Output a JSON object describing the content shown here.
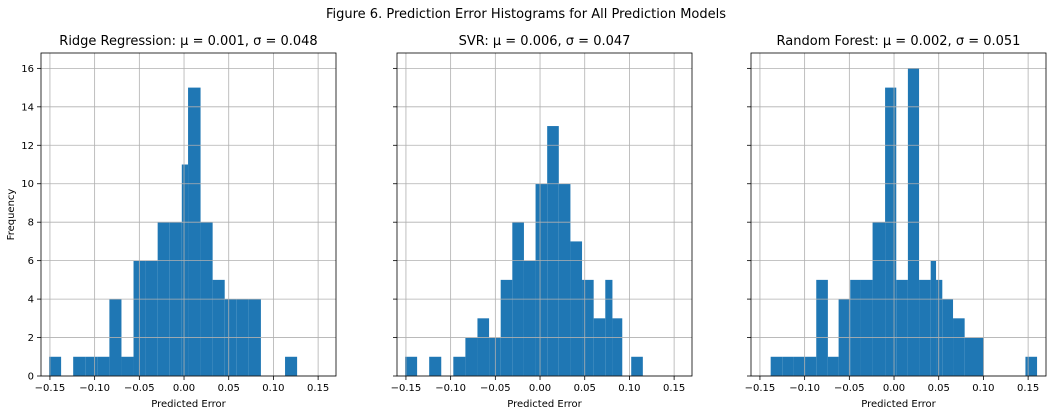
{
  "suptitle": "Figure 6. Prediction Error Histograms for All Prediction Models",
  "chart_data": [
    {
      "type": "bar",
      "title": "Ridge Regression: μ = 0.001, σ = 0.048",
      "xlabel": "Predicted Error",
      "ylabel": "Frequency",
      "xlim": [
        -0.16,
        0.17
      ],
      "ylim": [
        0,
        16.8
      ],
      "xticks": [
        -0.15,
        -0.1,
        -0.05,
        0.0,
        0.05,
        0.1,
        0.15
      ],
      "xtick_labels": [
        "−0.15",
        "−0.10",
        "−0.05",
        "0.00",
        "0.05",
        "0.10",
        "0.15"
      ],
      "yticks": [
        0,
        2,
        4,
        6,
        8,
        10,
        12,
        14,
        16
      ],
      "ytick_labels": [
        "0",
        "2",
        "4",
        "6",
        "8",
        "10",
        "12",
        "14",
        "16"
      ],
      "grid": true,
      "bins": [
        {
          "x0": -0.151,
          "x1": -0.1375,
          "y": 1
        },
        {
          "x0": -0.1375,
          "x1": -0.124,
          "y": 0
        },
        {
          "x0": -0.124,
          "x1": -0.1105,
          "y": 1
        },
        {
          "x0": -0.1105,
          "x1": -0.097,
          "y": 1
        },
        {
          "x0": -0.097,
          "x1": -0.0835,
          "y": 1
        },
        {
          "x0": -0.0835,
          "x1": -0.07,
          "y": 4
        },
        {
          "x0": -0.07,
          "x1": -0.0565,
          "y": 1
        },
        {
          "x0": -0.0565,
          "x1": -0.043,
          "y": 6
        },
        {
          "x0": -0.043,
          "x1": -0.0295,
          "y": 6
        },
        {
          "x0": -0.0295,
          "x1": -0.016,
          "y": 8
        },
        {
          "x0": -0.016,
          "x1": -0.0025,
          "y": 8
        },
        {
          "x0": -0.0025,
          "x1": 0.0045,
          "y": 11
        },
        {
          "x0": 0.0045,
          "x1": 0.0185,
          "y": 15
        },
        {
          "x0": 0.0185,
          "x1": 0.032,
          "y": 8
        },
        {
          "x0": 0.032,
          "x1": 0.0455,
          "y": 5
        },
        {
          "x0": 0.0455,
          "x1": 0.059,
          "y": 4
        },
        {
          "x0": 0.059,
          "x1": 0.0725,
          "y": 4
        },
        {
          "x0": 0.0725,
          "x1": 0.086,
          "y": 4
        },
        {
          "x0": 0.086,
          "x1": 0.113,
          "y": 0
        },
        {
          "x0": 0.113,
          "x1": 0.1265,
          "y": 1
        }
      ]
    },
    {
      "type": "bar",
      "title": "SVR: μ = 0.006, σ = 0.047",
      "xlabel": "Predicted Error",
      "ylabel": "",
      "xlim": [
        -0.16,
        0.17
      ],
      "ylim": [
        0,
        16.8
      ],
      "xticks": [
        -0.15,
        -0.1,
        -0.05,
        0.0,
        0.05,
        0.1,
        0.15
      ],
      "xtick_labels": [
        "−0.15",
        "−0.10",
        "−0.05",
        "0.00",
        "0.05",
        "0.10",
        "0.15"
      ],
      "yticks": [
        0,
        2,
        4,
        6,
        8,
        10,
        12,
        14,
        16
      ],
      "ytick_labels": [],
      "grid": true,
      "bins": [
        {
          "x0": -0.151,
          "x1": -0.1375,
          "y": 1
        },
        {
          "x0": -0.1375,
          "x1": -0.124,
          "y": 0
        },
        {
          "x0": -0.124,
          "x1": -0.1105,
          "y": 1
        },
        {
          "x0": -0.1105,
          "x1": -0.097,
          "y": 0
        },
        {
          "x0": -0.097,
          "x1": -0.0835,
          "y": 1
        },
        {
          "x0": -0.0835,
          "x1": -0.07,
          "y": 2
        },
        {
          "x0": -0.07,
          "x1": -0.057,
          "y": 3
        },
        {
          "x0": -0.057,
          "x1": -0.044,
          "y": 2
        },
        {
          "x0": -0.044,
          "x1": -0.031,
          "y": 5
        },
        {
          "x0": -0.031,
          "x1": -0.018,
          "y": 8
        },
        {
          "x0": -0.018,
          "x1": -0.005,
          "y": 6
        },
        {
          "x0": -0.005,
          "x1": 0.008,
          "y": 10
        },
        {
          "x0": 0.008,
          "x1": 0.021,
          "y": 13
        },
        {
          "x0": 0.021,
          "x1": 0.034,
          "y": 10
        },
        {
          "x0": 0.034,
          "x1": 0.047,
          "y": 7
        },
        {
          "x0": 0.047,
          "x1": 0.06,
          "y": 5
        },
        {
          "x0": 0.06,
          "x1": 0.073,
          "y": 3
        },
        {
          "x0": 0.073,
          "x1": 0.081,
          "y": 5
        },
        {
          "x0": 0.081,
          "x1": 0.092,
          "y": 3
        },
        {
          "x0": 0.092,
          "x1": 0.102,
          "y": 0
        },
        {
          "x0": 0.102,
          "x1": 0.115,
          "y": 1
        }
      ]
    },
    {
      "type": "bar",
      "title": "Random Forest: μ = 0.002, σ = 0.051",
      "xlabel": "Predicted Error",
      "ylabel": "",
      "xlim": [
        -0.16,
        0.17
      ],
      "ylim": [
        0,
        16.8
      ],
      "xticks": [
        -0.15,
        -0.1,
        -0.05,
        0.0,
        0.05,
        0.1,
        0.15
      ],
      "xtick_labels": [
        "−0.15",
        "−0.10",
        "−0.05",
        "0.00",
        "0.05",
        "0.10",
        "0.15"
      ],
      "yticks": [
        0,
        2,
        4,
        6,
        8,
        10,
        12,
        14,
        16
      ],
      "ytick_labels": [],
      "grid": true,
      "bins": [
        {
          "x0": -0.138,
          "x1": -0.125,
          "y": 1
        },
        {
          "x0": -0.125,
          "x1": -0.112,
          "y": 1
        },
        {
          "x0": -0.112,
          "x1": -0.099,
          "y": 1
        },
        {
          "x0": -0.099,
          "x1": -0.087,
          "y": 1
        },
        {
          "x0": -0.087,
          "x1": -0.074,
          "y": 5
        },
        {
          "x0": -0.074,
          "x1": -0.062,
          "y": 1
        },
        {
          "x0": -0.062,
          "x1": -0.049,
          "y": 4
        },
        {
          "x0": -0.049,
          "x1": -0.037,
          "y": 5
        },
        {
          "x0": -0.037,
          "x1": -0.024,
          "y": 5
        },
        {
          "x0": -0.024,
          "x1": -0.01,
          "y": 8
        },
        {
          "x0": -0.01,
          "x1": 0.0025,
          "y": 15
        },
        {
          "x0": 0.0025,
          "x1": 0.0155,
          "y": 5
        },
        {
          "x0": 0.0155,
          "x1": 0.028,
          "y": 16
        },
        {
          "x0": 0.028,
          "x1": 0.041,
          "y": 5
        },
        {
          "x0": 0.041,
          "x1": 0.047,
          "y": 6
        },
        {
          "x0": 0.047,
          "x1": 0.054,
          "y": 5
        },
        {
          "x0": 0.054,
          "x1": 0.066,
          "y": 4
        },
        {
          "x0": 0.066,
          "x1": 0.079,
          "y": 3
        },
        {
          "x0": 0.079,
          "x1": 0.1005,
          "y": 2
        },
        {
          "x0": 0.1005,
          "x1": 0.147,
          "y": 0
        },
        {
          "x0": 0.147,
          "x1": 0.16,
          "y": 1
        }
      ]
    }
  ]
}
